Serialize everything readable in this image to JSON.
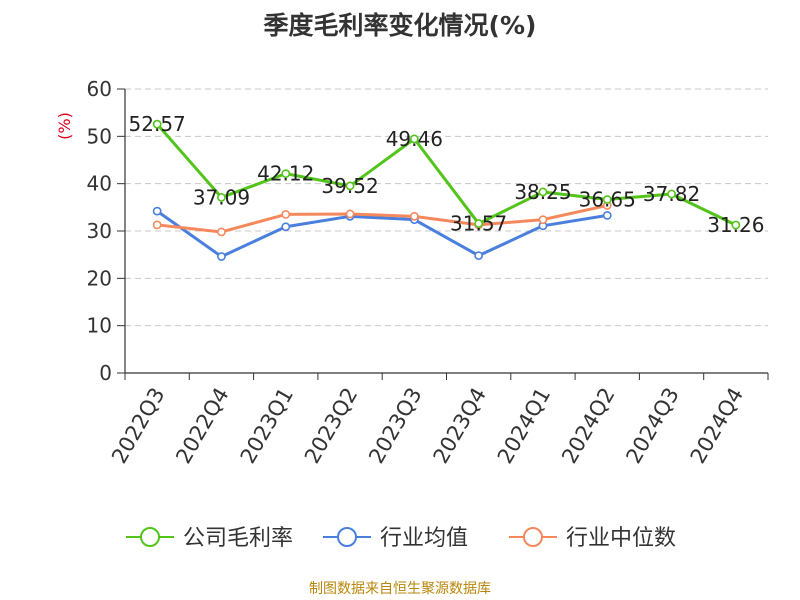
{
  "chart_data": {
    "type": "line",
    "title": "季度毛利率变化情况(%)",
    "ylabel": "(%)",
    "categories": [
      "2022Q3",
      "2022Q4",
      "2023Q1",
      "2023Q2",
      "2023Q3",
      "2023Q4",
      "2024Q1",
      "2024Q2",
      "2024Q3",
      "2024Q4"
    ],
    "ylim": [
      0,
      60
    ],
    "yticks": [
      0,
      10,
      20,
      30,
      40,
      50,
      60
    ],
    "grid": true,
    "legend_position": "bottom",
    "series": [
      {
        "name": "公司毛利率",
        "color": "#52c41a",
        "values": [
          52.57,
          37.09,
          42.12,
          39.52,
          49.46,
          31.57,
          38.25,
          36.65,
          37.82,
          31.26
        ],
        "labels": [
          "52.57",
          "37.09",
          "42.12",
          "39.52",
          "49.46",
          "31.57",
          "38.25",
          "36.65",
          "37.82",
          "31.26"
        ]
      },
      {
        "name": "行业均值",
        "color": "#4a7fde",
        "values": [
          34.2,
          24.6,
          30.9,
          33.1,
          32.4,
          24.8,
          31.1,
          33.3,
          null,
          null
        ]
      },
      {
        "name": "行业中位数",
        "color": "#f5895d",
        "values": [
          31.3,
          29.8,
          33.5,
          33.6,
          33.1,
          31.3,
          32.4,
          35.4,
          null,
          null
        ]
      }
    ]
  },
  "source": "制图数据来自恒生聚源数据库"
}
